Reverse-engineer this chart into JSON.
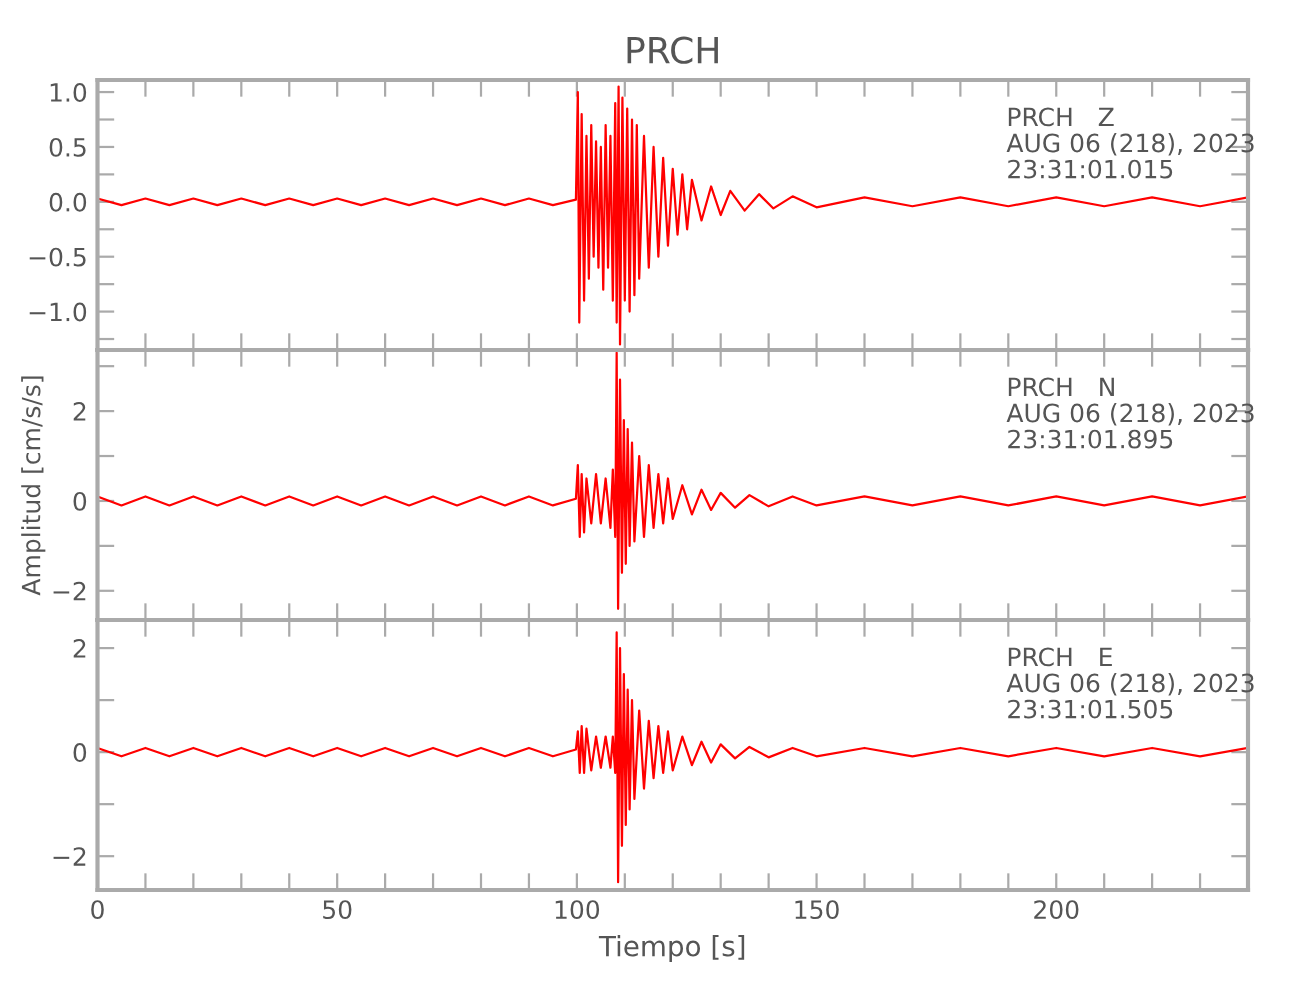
{
  "chart_data": [
    {
      "type": "line",
      "title": "PRCH",
      "annotations": [
        "PRCH   Z\nAUG 06 (218), 2023\n23:31:01.015"
      ],
      "tick_labels": "y",
      "grid": false,
      "legend": false,
      "line_style": "solid",
      "marker": "none",
      "xlim": [
        0,
        240
      ],
      "xticks": [
        {
          "value": 0,
          "label": null
        },
        {
          "value": 10,
          "label": null
        },
        {
          "value": 20,
          "label": null
        },
        {
          "value": 30,
          "label": null
        },
        {
          "value": 40,
          "label": null
        },
        {
          "value": 50,
          "label": null
        },
        {
          "value": 60,
          "label": null
        },
        {
          "value": 70,
          "label": null
        },
        {
          "value": 80,
          "label": null
        },
        {
          "value": 90,
          "label": null
        },
        {
          "value": 100,
          "label": null
        },
        {
          "value": 110,
          "label": null
        },
        {
          "value": 120,
          "label": null
        },
        {
          "value": 130,
          "label": null
        },
        {
          "value": 140,
          "label": null
        },
        {
          "value": 150,
          "label": null
        },
        {
          "value": 160,
          "label": null
        },
        {
          "value": 170,
          "label": null
        },
        {
          "value": 180,
          "label": null
        },
        {
          "value": 190,
          "label": null
        },
        {
          "value": 200,
          "label": null
        },
        {
          "value": 210,
          "label": null
        },
        {
          "value": 220,
          "label": null
        },
        {
          "value": 230,
          "label": null
        }
      ],
      "ylim": [
        -1.35,
        1.11
      ],
      "yticks": [
        {
          "value": -1.25,
          "label": null
        },
        {
          "value": -1.0,
          "label": "−1.0"
        },
        {
          "value": -0.75,
          "label": null
        },
        {
          "value": -0.5,
          "label": "−0.5"
        },
        {
          "value": -0.25,
          "label": null
        },
        {
          "value": 0.0,
          "label": "0.0"
        },
        {
          "value": 0.25,
          "label": null
        },
        {
          "value": 0.5,
          "label": "0.5"
        },
        {
          "value": 0.75,
          "label": null
        },
        {
          "value": 1.0,
          "label": "1.0"
        }
      ],
      "series": [
        {
          "color": "#ff0000",
          "x": [
            0,
            5,
            10,
            15,
            20,
            25,
            30,
            35,
            40,
            45,
            50,
            55,
            60,
            65,
            70,
            75,
            80,
            85,
            90,
            95,
            99.8,
            100.2,
            100.5,
            101,
            101.5,
            102,
            102.5,
            103,
            103.5,
            104,
            104.5,
            105,
            105.5,
            106,
            106.5,
            107,
            107.5,
            108,
            108.3,
            108.7,
            109,
            109.5,
            110,
            110.5,
            111,
            111.5,
            112,
            112.5,
            113,
            114,
            115,
            116,
            117,
            118,
            119,
            120,
            121,
            122,
            123,
            124,
            126,
            128,
            130,
            132,
            135,
            138,
            141,
            145,
            150,
            160,
            170,
            180,
            190,
            200,
            210,
            220,
            230,
            240
          ],
          "values": [
            0.03,
            -0.03,
            0.03,
            -0.03,
            0.03,
            -0.03,
            0.03,
            -0.03,
            0.03,
            -0.03,
            0.03,
            -0.03,
            0.03,
            -0.03,
            0.03,
            -0.03,
            0.03,
            -0.03,
            0.03,
            -0.03,
            0.02,
            1.0,
            -1.1,
            0.8,
            -0.9,
            0.6,
            -0.7,
            0.7,
            -0.5,
            0.55,
            -0.6,
            0.5,
            -0.8,
            0.7,
            -0.6,
            0.6,
            -0.9,
            0.9,
            -1.1,
            1.05,
            -1.3,
            0.95,
            -0.9,
            0.85,
            -1.0,
            0.75,
            -0.85,
            0.7,
            -0.7,
            0.6,
            -0.6,
            0.5,
            -0.5,
            0.4,
            -0.4,
            0.3,
            -0.3,
            0.25,
            -0.25,
            0.2,
            -0.17,
            0.14,
            -0.12,
            0.1,
            -0.08,
            0.07,
            -0.06,
            0.05,
            -0.05,
            0.04,
            -0.04,
            0.04,
            -0.04,
            0.04,
            -0.04,
            0.04,
            -0.04,
            0.04
          ]
        }
      ]
    },
    {
      "type": "line",
      "ylabel": "Amplitud [cm/s/s]",
      "annotations": [
        "PRCH   N\nAUG 06 (218), 2023\n23:31:01.895"
      ],
      "tick_labels": "y",
      "grid": false,
      "legend": false,
      "line_style": "solid",
      "marker": "none",
      "xlim": [
        0,
        240
      ],
      "xticks": [
        {
          "value": 0,
          "label": null
        },
        {
          "value": 10,
          "label": null
        },
        {
          "value": 20,
          "label": null
        },
        {
          "value": 30,
          "label": null
        },
        {
          "value": 40,
          "label": null
        },
        {
          "value": 50,
          "label": null
        },
        {
          "value": 60,
          "label": null
        },
        {
          "value": 70,
          "label": null
        },
        {
          "value": 80,
          "label": null
        },
        {
          "value": 90,
          "label": null
        },
        {
          "value": 100,
          "label": null
        },
        {
          "value": 110,
          "label": null
        },
        {
          "value": 120,
          "label": null
        },
        {
          "value": 130,
          "label": null
        },
        {
          "value": 140,
          "label": null
        },
        {
          "value": 150,
          "label": null
        },
        {
          "value": 160,
          "label": null
        },
        {
          "value": 170,
          "label": null
        },
        {
          "value": 180,
          "label": null
        },
        {
          "value": 190,
          "label": null
        },
        {
          "value": 200,
          "label": null
        },
        {
          "value": 210,
          "label": null
        },
        {
          "value": 220,
          "label": null
        },
        {
          "value": 230,
          "label": null
        }
      ],
      "ylim": [
        -2.65,
        3.36
      ],
      "yticks": [
        {
          "value": -2,
          "label": "−2"
        },
        {
          "value": -1,
          "label": null
        },
        0,
        {
          "value": 1,
          "label": null
        },
        2,
        {
          "value": 3,
          "label": null
        }
      ],
      "series": [
        {
          "color": "#ff0000",
          "x": [
            0,
            5,
            10,
            15,
            20,
            25,
            30,
            35,
            40,
            45,
            50,
            55,
            60,
            65,
            70,
            75,
            80,
            85,
            90,
            95,
            99.8,
            100.2,
            100.6,
            101,
            101.5,
            102,
            103,
            104,
            105,
            106,
            107,
            107.5,
            108,
            108.3,
            108.6,
            109,
            109.4,
            109.8,
            110.2,
            110.6,
            111,
            111.5,
            112,
            113,
            114,
            115,
            116,
            117,
            118,
            119,
            120,
            122,
            124,
            126,
            128,
            130,
            133,
            136,
            140,
            145,
            150,
            160,
            170,
            180,
            190,
            200,
            210,
            220,
            230,
            240
          ],
          "values": [
            0.1,
            -0.1,
            0.1,
            -0.1,
            0.1,
            -0.1,
            0.1,
            -0.1,
            0.1,
            -0.1,
            0.1,
            -0.1,
            0.1,
            -0.1,
            0.1,
            -0.1,
            0.1,
            -0.1,
            0.1,
            -0.1,
            0.05,
            0.8,
            -0.8,
            0.6,
            -0.7,
            0.5,
            -0.5,
            0.6,
            -0.5,
            0.5,
            -0.6,
            0.7,
            -0.8,
            3.3,
            -2.4,
            2.7,
            -1.6,
            1.8,
            -1.4,
            1.6,
            -1.0,
            1.3,
            -0.9,
            1.0,
            -0.8,
            0.8,
            -0.6,
            0.6,
            -0.5,
            0.5,
            -0.4,
            0.35,
            -0.3,
            0.25,
            -0.2,
            0.18,
            -0.15,
            0.13,
            -0.12,
            0.1,
            -0.1,
            0.1,
            -0.1,
            0.1,
            -0.1,
            0.1,
            -0.1,
            0.1,
            -0.1,
            0.1
          ]
        }
      ]
    },
    {
      "type": "line",
      "xlabel": "Tiempo [s]",
      "annotations": [
        "PRCH   E\nAUG 06 (218), 2023\n23:31:01.505"
      ],
      "grid": false,
      "legend": false,
      "line_style": "solid",
      "marker": "none",
      "xlim": [
        0,
        240
      ],
      "xticks": [
        0,
        {
          "value": 10,
          "label": null
        },
        {
          "value": 20,
          "label": null
        },
        {
          "value": 30,
          "label": null
        },
        {
          "value": 40,
          "label": null
        },
        50,
        {
          "value": 60,
          "label": null
        },
        {
          "value": 70,
          "label": null
        },
        {
          "value": 80,
          "label": null
        },
        {
          "value": 90,
          "label": null
        },
        100,
        {
          "value": 110,
          "label": null
        },
        {
          "value": 120,
          "label": null
        },
        {
          "value": 130,
          "label": null
        },
        {
          "value": 140,
          "label": null
        },
        150,
        {
          "value": 160,
          "label": null
        },
        {
          "value": 170,
          "label": null
        },
        {
          "value": 180,
          "label": null
        },
        {
          "value": 190,
          "label": null
        },
        200,
        {
          "value": 210,
          "label": null
        },
        {
          "value": 220,
          "label": null
        },
        {
          "value": 230,
          "label": null
        }
      ],
      "ylim": [
        -2.65,
        2.54
      ],
      "yticks": [
        {
          "value": -2,
          "label": "−2"
        },
        {
          "value": -1,
          "label": null
        },
        0,
        {
          "value": 1,
          "label": null
        },
        2
      ],
      "series": [
        {
          "color": "#ff0000",
          "x": [
            0,
            5,
            10,
            15,
            20,
            25,
            30,
            35,
            40,
            45,
            50,
            55,
            60,
            65,
            70,
            75,
            80,
            85,
            90,
            95,
            99.8,
            100.2,
            100.6,
            101,
            101.5,
            102,
            103,
            104,
            105,
            106,
            107,
            107.5,
            108,
            108.3,
            108.6,
            109,
            109.4,
            109.8,
            110.2,
            110.6,
            111,
            111.5,
            112,
            113,
            114,
            115,
            116,
            117,
            118,
            119,
            120,
            122,
            124,
            126,
            128,
            130,
            133,
            136,
            140,
            145,
            150,
            160,
            170,
            180,
            190,
            200,
            210,
            220,
            230,
            240
          ],
          "values": [
            0.08,
            -0.08,
            0.08,
            -0.08,
            0.08,
            -0.08,
            0.08,
            -0.08,
            0.08,
            -0.08,
            0.08,
            -0.08,
            0.08,
            -0.08,
            0.08,
            -0.08,
            0.08,
            -0.08,
            0.08,
            -0.08,
            0.05,
            0.4,
            -0.4,
            0.5,
            -0.4,
            0.45,
            -0.35,
            0.3,
            -0.3,
            0.3,
            -0.3,
            0.3,
            -0.4,
            2.3,
            -2.5,
            2.0,
            -1.8,
            1.5,
            -1.4,
            1.2,
            -1.1,
            1.0,
            -0.9,
            0.8,
            -0.7,
            0.6,
            -0.5,
            0.5,
            -0.4,
            0.4,
            -0.35,
            0.3,
            -0.25,
            0.2,
            -0.2,
            0.15,
            -0.12,
            0.1,
            -0.1,
            0.08,
            -0.08,
            0.08,
            -0.08,
            0.08,
            -0.08,
            0.08,
            -0.08,
            0.08,
            -0.08,
            0.08
          ]
        }
      ]
    }
  ]
}
